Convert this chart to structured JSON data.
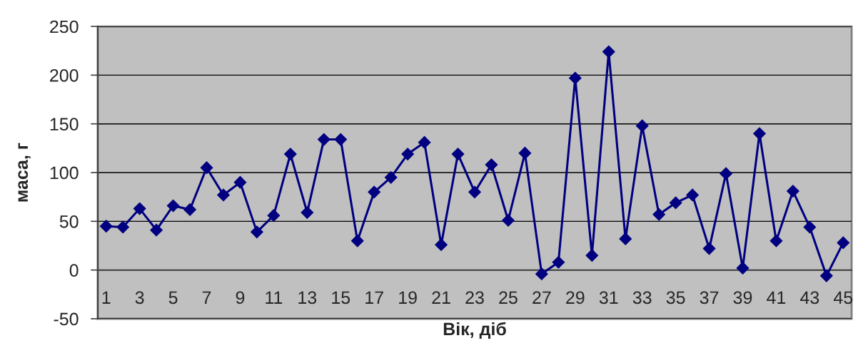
{
  "chart_data": {
    "type": "line",
    "xlabel": "Вік, діб",
    "ylabel": "маса, г",
    "categories": [
      "1",
      null,
      "3",
      null,
      "5",
      null,
      "7",
      null,
      "9",
      null,
      "11",
      null,
      "13",
      null,
      "15",
      null,
      "17",
      null,
      "19",
      null,
      "21",
      null,
      "23",
      null,
      "25",
      null,
      "27",
      null,
      "29",
      null,
      "31",
      null,
      "33",
      null,
      "35",
      null,
      "37",
      null,
      "39",
      null,
      "41",
      null,
      "43",
      null,
      "45"
    ],
    "series": [
      {
        "color": "#000080",
        "values": [
          45,
          44,
          63,
          41,
          66,
          62,
          105,
          77,
          90,
          39,
          56,
          119,
          59,
          134,
          134,
          30,
          80,
          95,
          119,
          131,
          26,
          119,
          80,
          108,
          51,
          120,
          -4,
          8,
          197,
          15,
          224,
          32,
          148,
          57,
          69,
          77,
          22,
          99,
          2,
          140,
          30,
          81,
          44,
          -6,
          28
        ]
      }
    ],
    "ylim": [
      -50,
      250
    ],
    "yticks": [
      -50,
      0,
      50,
      100,
      150,
      200,
      250
    ],
    "grid": "y",
    "marker": "diamond",
    "line_style": "solid"
  }
}
